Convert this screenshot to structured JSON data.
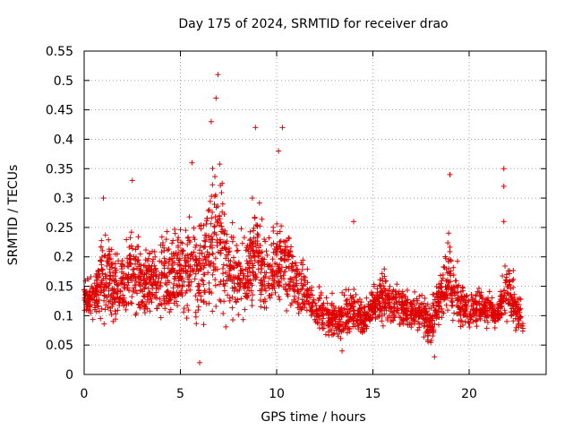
{
  "chart_data": {
    "type": "scatter",
    "title": "Day 175 of 2024, SRMTID for receiver drao",
    "xlabel": "GPS time / hours",
    "ylabel": "SRMTID / TECUs",
    "xlim": [
      0,
      24
    ],
    "ylim": [
      0,
      0.55
    ],
    "x_ticks": [
      0,
      5,
      10,
      15,
      20
    ],
    "y_ticks": [
      0,
      0.05,
      0.1,
      0.15,
      0.2,
      0.25,
      0.3,
      0.35,
      0.4,
      0.45,
      0.5,
      0.55
    ],
    "x_tick_labels": [
      "0",
      "5",
      "10",
      "15",
      "20"
    ],
    "y_tick_labels": [
      "0",
      "0.05",
      "0.1",
      "0.15",
      "0.2",
      "0.25",
      "0.3",
      "0.35",
      "0.4",
      "0.45",
      "0.5",
      "0.55"
    ],
    "grid": true,
    "marker": "plus",
    "color": "#e00000",
    "series": [
      {
        "name": "SRMTID",
        "envelope_hours": [
          0,
          0.5,
          1,
          1.5,
          2,
          2.5,
          3,
          3.5,
          4,
          4.5,
          5,
          5.5,
          6,
          6.5,
          7,
          7.5,
          8,
          8.5,
          9,
          9.5,
          10,
          10.5,
          11,
          11.5,
          12,
          12.5,
          13,
          13.5,
          14,
          14.5,
          15,
          15.5,
          16,
          16.5,
          17,
          17.5,
          18,
          18.5,
          19,
          19.5,
          20,
          20.5,
          21,
          21.5,
          22,
          22.5,
          22.8
        ],
        "envelope_low": [
          0.1,
          0.09,
          0.06,
          0.08,
          0.09,
          0.08,
          0.08,
          0.09,
          0.07,
          0.08,
          0.09,
          0.08,
          0.06,
          0.08,
          0.07,
          0.08,
          0.08,
          0.08,
          0.09,
          0.08,
          0.09,
          0.1,
          0.1,
          0.09,
          0.07,
          0.06,
          0.05,
          0.06,
          0.06,
          0.06,
          0.08,
          0.08,
          0.07,
          0.07,
          0.07,
          0.06,
          0.04,
          0.07,
          0.08,
          0.07,
          0.07,
          0.08,
          0.07,
          0.08,
          0.07,
          0.07,
          0.06
        ],
        "envelope_high": [
          0.18,
          0.17,
          0.29,
          0.24,
          0.22,
          0.31,
          0.24,
          0.25,
          0.27,
          0.27,
          0.28,
          0.3,
          0.31,
          0.36,
          0.45,
          0.3,
          0.26,
          0.28,
          0.35,
          0.26,
          0.33,
          0.28,
          0.22,
          0.2,
          0.16,
          0.15,
          0.14,
          0.15,
          0.17,
          0.13,
          0.16,
          0.2,
          0.17,
          0.17,
          0.15,
          0.16,
          0.13,
          0.2,
          0.26,
          0.18,
          0.15,
          0.17,
          0.15,
          0.13,
          0.24,
          0.17,
          0.12
        ],
        "spikes": [
          {
            "x": 1.0,
            "y": 0.3
          },
          {
            "x": 2.5,
            "y": 0.33
          },
          {
            "x": 5.6,
            "y": 0.36
          },
          {
            "x": 6.95,
            "y": 0.51
          },
          {
            "x": 6.85,
            "y": 0.47
          },
          {
            "x": 6.6,
            "y": 0.43
          },
          {
            "x": 8.9,
            "y": 0.42
          },
          {
            "x": 10.1,
            "y": 0.38
          },
          {
            "x": 10.3,
            "y": 0.42
          },
          {
            "x": 14.0,
            "y": 0.26
          },
          {
            "x": 19.0,
            "y": 0.34
          },
          {
            "x": 21.8,
            "y": 0.35
          },
          {
            "x": 21.8,
            "y": 0.32
          },
          {
            "x": 21.8,
            "y": 0.26
          },
          {
            "x": 6.0,
            "y": 0.02
          },
          {
            "x": 13.4,
            "y": 0.04
          },
          {
            "x": 18.2,
            "y": 0.03
          }
        ]
      }
    ]
  }
}
